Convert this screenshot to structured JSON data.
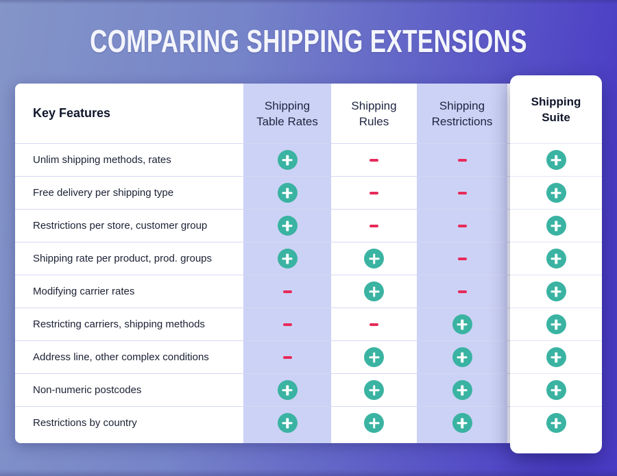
{
  "title": "COMPARING SHIPPING EXTENSIONS",
  "table": {
    "key_features_label": "Key Features",
    "columns": [
      {
        "line1": "Shipping",
        "line2": "Table Rates",
        "highlighted": false
      },
      {
        "line1": "Shipping",
        "line2": "Rules",
        "highlighted": false
      },
      {
        "line1": "Shipping",
        "line2": "Restrictions",
        "highlighted": false
      },
      {
        "line1": "Shipping",
        "line2": "Suite",
        "highlighted": true
      }
    ],
    "rows": [
      {
        "feature": "Unlim shipping methods, rates",
        "values": [
          "plus",
          "minus",
          "minus",
          "plus"
        ]
      },
      {
        "feature": "Free delivery per shipping type",
        "values": [
          "plus",
          "minus",
          "minus",
          "plus"
        ]
      },
      {
        "feature": "Restrictions per store, customer group",
        "values": [
          "plus",
          "minus",
          "minus",
          "plus"
        ]
      },
      {
        "feature": "Shipping rate per product, prod. groups",
        "values": [
          "plus",
          "plus",
          "minus",
          "plus"
        ]
      },
      {
        "feature": "Modifying carrier rates",
        "values": [
          "minus",
          "plus",
          "minus",
          "plus"
        ]
      },
      {
        "feature": "Restricting carriers, shipping methods",
        "values": [
          "minus",
          "minus",
          "plus",
          "plus"
        ]
      },
      {
        "feature": "Address line, other complex conditions",
        "values": [
          "minus",
          "plus",
          "plus",
          "plus"
        ]
      },
      {
        "feature": "Non-numeric postcodes",
        "values": [
          "plus",
          "plus",
          "plus",
          "plus"
        ]
      },
      {
        "feature": "Restrictions by country",
        "values": [
          "plus",
          "plus",
          "plus",
          "plus"
        ]
      }
    ]
  },
  "colors": {
    "plus_circle": "#3ab3a2",
    "minus_dash": "#e72b5a",
    "column_stripe": "#ccd2f5",
    "background_start": "#8495c8",
    "background_end": "#4a3cc5",
    "card": "#ffffff"
  }
}
